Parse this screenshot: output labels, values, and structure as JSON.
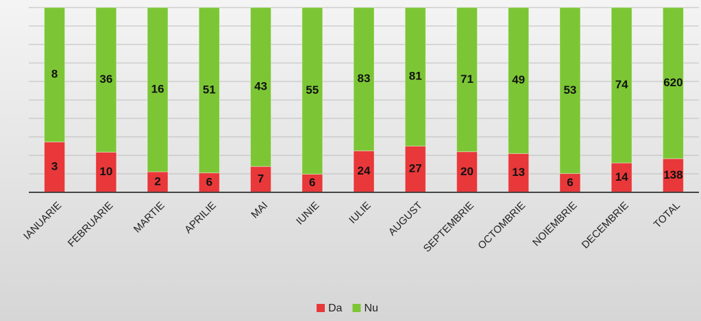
{
  "chart_data": {
    "type": "bar",
    "stacked": "percent",
    "categories": [
      "IANUARIE",
      "FEBRUARIE",
      "MARTIE",
      "APRILIE",
      "MAI",
      "IUNIE",
      "IULIE",
      "AUGUST",
      "SEPTEMBRIE",
      "OCTOMBRIE",
      "NOIEMBRIE",
      "DECEMBRIE",
      "TOTAL"
    ],
    "series": [
      {
        "name": "Da",
        "color": "#e8383a",
        "values": [
          3,
          10,
          2,
          6,
          7,
          6,
          24,
          27,
          20,
          13,
          6,
          14,
          138
        ]
      },
      {
        "name": "Nu",
        "color": "#7cc636",
        "values": [
          8,
          36,
          16,
          51,
          43,
          55,
          83,
          81,
          71,
          49,
          53,
          74,
          620
        ]
      }
    ],
    "ylim": [
      0,
      100
    ],
    "yticks": [
      0,
      10,
      20,
      30,
      40,
      50,
      60,
      70,
      80,
      90,
      100
    ],
    "grid": true,
    "legend": "bottom"
  }
}
